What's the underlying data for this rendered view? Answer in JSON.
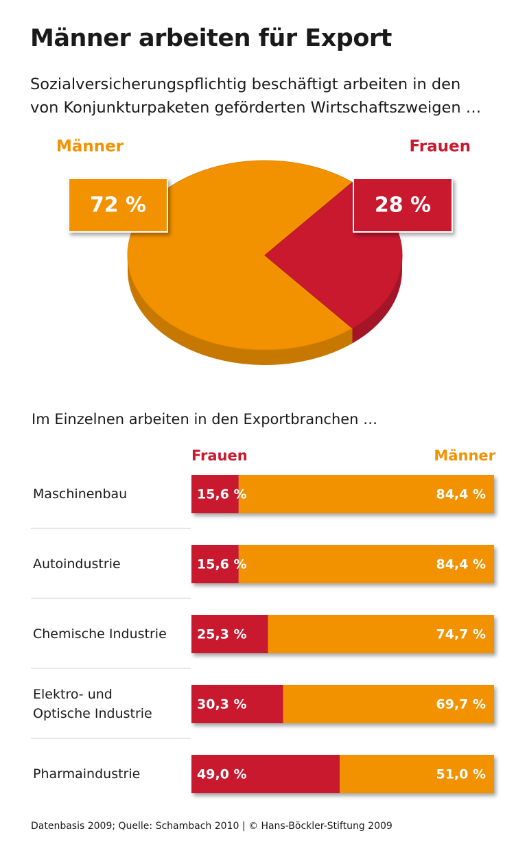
{
  "title": "Männer arbeiten für Export",
  "subtitle": "Sozialversicherungspflichtig beschäftigt arbeiten in den\nvon Konjunkturpaketen geförderten Wirtschaftszweigen …",
  "source": "Datenbasis 2009; Quelle: Schambach 2010 | © Hans-Böckler-Stiftung 2009",
  "chart_data": [
    {
      "type": "pie",
      "categories": [
        "Männer",
        "Frauen"
      ],
      "values": [
        72,
        28
      ],
      "value_labels": [
        "72 %",
        "28 %"
      ],
      "colors": [
        "#f39200",
        "#c8192f"
      ]
    },
    {
      "type": "bar",
      "orientation": "horizontal",
      "stacked": true,
      "title": "Im Einzelnen arbeiten in den Exportbranchen …",
      "categories": [
        "Maschinenbau",
        "Autoindustrie",
        "Chemische Industrie",
        "Elektro- und\nOptische Industrie",
        "Pharmaindustrie"
      ],
      "xlim": [
        0,
        100
      ],
      "series": [
        {
          "name": "Frauen",
          "color": "#c8192f",
          "values": [
            15.6,
            15.6,
            25.3,
            30.3,
            49.0
          ],
          "value_labels": [
            "15,6 %",
            "15,6 %",
            "25,3 %",
            "30,3 %",
            "49,0 %"
          ]
        },
        {
          "name": "Männer",
          "color": "#f39200",
          "values": [
            84.4,
            84.4,
            74.7,
            69.7,
            51.0
          ],
          "value_labels": [
            "84,4 %",
            "84,4 %",
            "74,7 %",
            "69,7 %",
            "51,0 %"
          ]
        }
      ]
    }
  ]
}
